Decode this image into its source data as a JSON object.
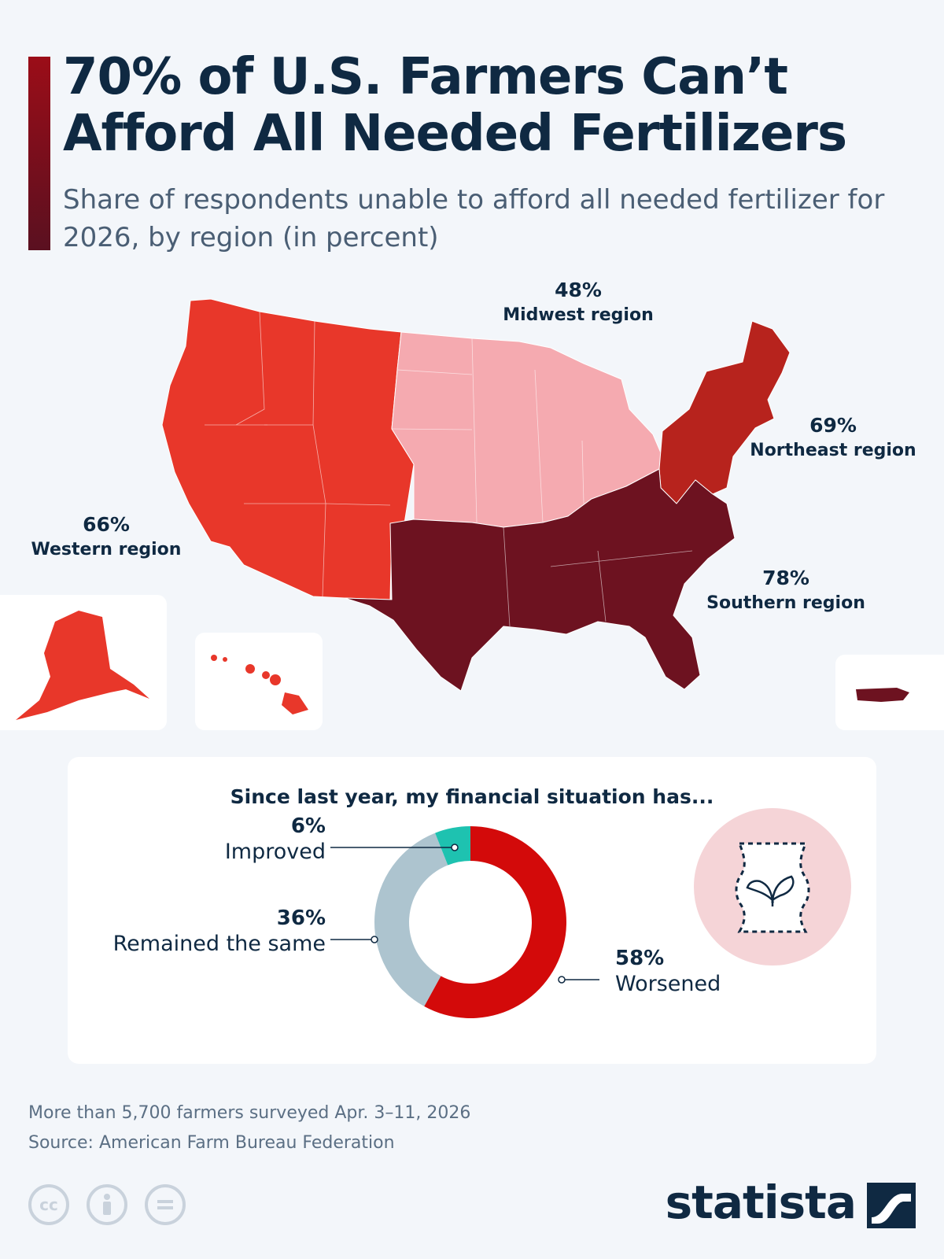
{
  "header": {
    "title": "70% of U.S. Farmers Can’t Afford All Needed Fertilizers",
    "subtitle": "Share of respondents unable to afford all needed fertilizer for 2026, by region (in percent)"
  },
  "colors": {
    "western": "#e8372a",
    "midwest": "#f5aab0",
    "northeast": "#b7231d",
    "southern": "#6d1220",
    "improved": "#1ec2b0",
    "same": "#adc4cf",
    "worsened": "#d30a0a",
    "icon_circle": "#f5d4d7"
  },
  "map_regions": [
    {
      "region": "Western region",
      "value": "66%"
    },
    {
      "region": "Midwest region",
      "value": "48%"
    },
    {
      "region": "Northeast region",
      "value": "69%"
    },
    {
      "region": "Southern region",
      "value": "78%"
    }
  ],
  "chart_data": [
    {
      "type": "map",
      "title": "70% of U.S. Farmers Can’t Afford All Needed Fertilizers",
      "subtitle": "Share of respondents unable to afford all needed fertilizer for 2026, by region (in percent)",
      "categories": [
        "Western region",
        "Midwest region",
        "Northeast region",
        "Southern region"
      ],
      "values": [
        66,
        48,
        69,
        78
      ],
      "unit": "%"
    },
    {
      "type": "pie",
      "title": "Since last year, my financial situation has...",
      "categories": [
        "Improved",
        "Remained the same",
        "Worsened"
      ],
      "values": [
        6,
        36,
        58
      ],
      "unit": "%"
    }
  ],
  "donut": {
    "title": "Since last year, my financial situation has...",
    "slices": [
      {
        "label": "Improved",
        "value": "6%"
      },
      {
        "label": "Remained the same",
        "value": "36%"
      },
      {
        "label": "Worsened",
        "value": "58%"
      }
    ],
    "icon": "fertilizer-bag-sprout-icon"
  },
  "footer": {
    "note": "More than 5,700 farmers surveyed Apr. 3–11, 2026",
    "source": "Source: American Farm Bureau Federation",
    "license_icons": [
      "cc-icon",
      "attribution-icon",
      "no-derivatives-icon"
    ],
    "brand": "statista"
  }
}
